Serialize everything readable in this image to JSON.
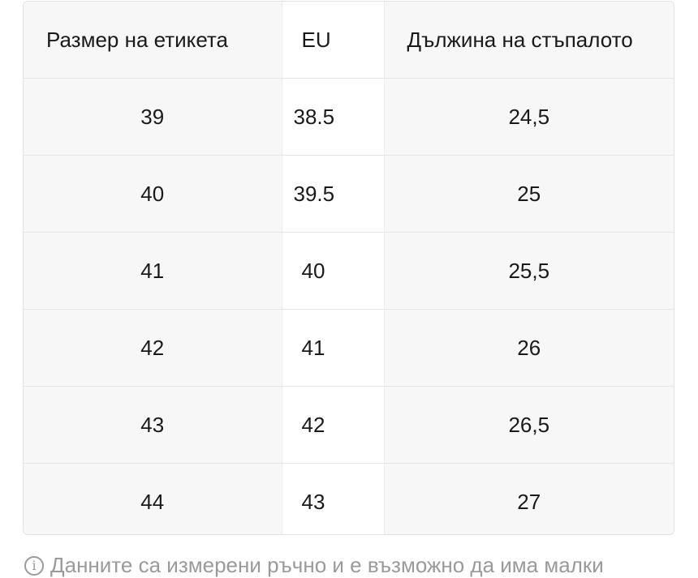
{
  "size_table": {
    "headers": {
      "label_size": "Размер на етикета",
      "eu": "EU",
      "foot_length": "Дължина на стъпалото"
    },
    "rows": [
      {
        "label_size": "39",
        "eu": "38.5",
        "foot_length": "24,5"
      },
      {
        "label_size": "40",
        "eu": "39.5",
        "foot_length": "25"
      },
      {
        "label_size": "41",
        "eu": "40",
        "foot_length": "25,5"
      },
      {
        "label_size": "42",
        "eu": "41",
        "foot_length": "26"
      },
      {
        "label_size": "43",
        "eu": "42",
        "foot_length": "26,5"
      },
      {
        "label_size": "44",
        "eu": "43",
        "foot_length": "27"
      }
    ]
  },
  "footnote": {
    "icon": "info-icon",
    "text": "Данните са измерени ръчно и е възможно да има малки"
  }
}
